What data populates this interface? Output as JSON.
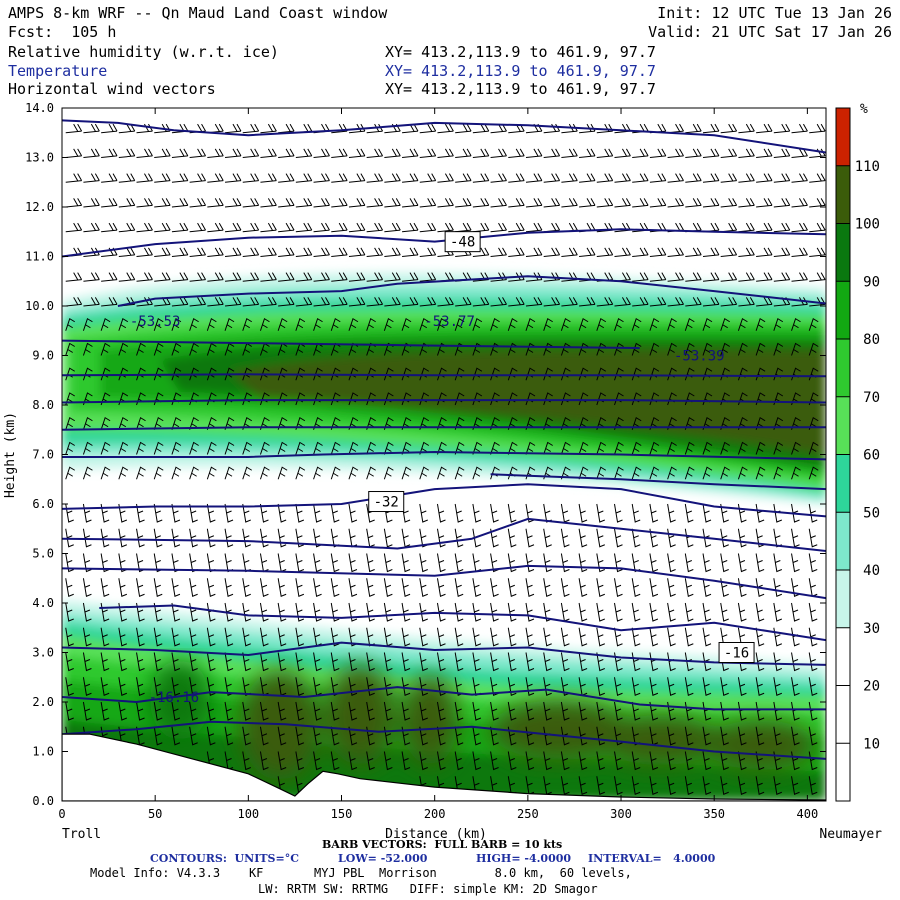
{
  "header": {
    "title": "AMPS 8-km WRF -- Qn Maud Land Coast window",
    "forecast": "Fcst:  105 h",
    "init": "Init: 12 UTC Tue 13 Jan 26",
    "valid": "Valid: 21 UTC Sat 17 Jan 26",
    "fields": [
      {
        "name": "Relative humidity (w.r.t. ice)",
        "xy": "XY= 413.2,113.9 to 461.9, 97.7"
      },
      {
        "name": "Temperature",
        "xy": "XY= 413.2,113.9 to 461.9, 97.7"
      },
      {
        "name": "Horizontal wind vectors",
        "xy": "XY= 413.2,113.9 to 461.9, 97.7"
      }
    ]
  },
  "endpoints": {
    "left": "Troll",
    "right": "Neumayer"
  },
  "footer": {
    "barb": "BARB VECTORS:  FULL BARB = 10 kts",
    "contours_label": "CONTOURS:  UNITS=°C",
    "low": "LOW= -52.000",
    "high": "HIGH= -4.0000",
    "interval": "INTERVAL=   4.0000",
    "model_info": "Model Info: V4.3.3    KF       MYJ PBL  Morrison        8.0 km,  60 levels,",
    "physics": "LW: RRTM SW: RRTMG   DIFF: simple KM: 2D Smagor"
  },
  "colors": {
    "contour": "#13137a",
    "rh_bins": [
      "#ffffff",
      "#ffffff",
      "#ffffff",
      "#c8f5ea",
      "#7ee8cc",
      "#2ed69a",
      "#58e058",
      "#2fc92f",
      "#12a812",
      "#0a780f",
      "#3b5c0a",
      "#cc2200"
    ]
  },
  "chart_data": {
    "type": "cross-section",
    "xlabel": "Distance (km)",
    "ylabel": "Height (km)",
    "xlim": [
      0,
      410
    ],
    "ylim": [
      0,
      14
    ],
    "x_ticks": [
      0,
      50,
      100,
      150,
      200,
      250,
      300,
      350,
      400
    ],
    "y_ticks": [
      "0.0",
      "1.0",
      "2.0",
      "3.0",
      "4.0",
      "5.0",
      "6.0",
      "7.0",
      "8.0",
      "9.0",
      "10.0",
      "11.0",
      "12.0",
      "13.0",
      "14.0"
    ],
    "colorbar": {
      "unit": "%",
      "ticks": [
        10,
        20,
        30,
        40,
        50,
        60,
        70,
        80,
        90,
        100,
        110
      ]
    },
    "terrain": [
      [
        0,
        1.35
      ],
      [
        15,
        1.35
      ],
      [
        40,
        1.15
      ],
      [
        70,
        0.85
      ],
      [
        100,
        0.55
      ],
      [
        115,
        0.28
      ],
      [
        125,
        0.1
      ],
      [
        132,
        0.35
      ],
      [
        140,
        0.6
      ],
      [
        148,
        0.55
      ],
      [
        160,
        0.45
      ],
      [
        200,
        0.28
      ],
      [
        250,
        0.15
      ],
      [
        300,
        0.08
      ],
      [
        350,
        0.04
      ],
      [
        410,
        0.02
      ]
    ],
    "contour_labels": [
      {
        "text": "-48",
        "x": 215,
        "y": 11.3,
        "boxed": true
      },
      {
        "text": "-53.53",
        "x": 50,
        "y": 9.7,
        "boxed": false
      },
      {
        "text": "-53.77",
        "x": 208,
        "y": 9.7,
        "boxed": false
      },
      {
        "text": "-53.39",
        "x": 342,
        "y": 9.0,
        "boxed": false
      },
      {
        "text": "-32",
        "x": 174,
        "y": 6.05,
        "boxed": true
      },
      {
        "text": "-16",
        "x": 362,
        "y": 3.0,
        "boxed": true
      },
      {
        "text": "-16.16",
        "x": 60,
        "y": 2.1,
        "boxed": false
      }
    ],
    "isotherms": [
      [
        [
          0,
          13.75
        ],
        [
          30,
          13.7
        ],
        [
          60,
          13.55
        ],
        [
          100,
          13.45
        ],
        [
          150,
          13.55
        ],
        [
          200,
          13.7
        ],
        [
          250,
          13.65
        ],
        [
          300,
          13.55
        ],
        [
          350,
          13.45
        ],
        [
          410,
          13.1
        ]
      ],
      [
        [
          0,
          11.0
        ],
        [
          50,
          11.25
        ],
        [
          100,
          11.38
        ],
        [
          150,
          11.42
        ],
        [
          200,
          11.3
        ],
        [
          250,
          11.48
        ],
        [
          300,
          11.55
        ],
        [
          350,
          11.5
        ],
        [
          410,
          11.45
        ]
      ],
      [
        [
          30,
          10.0
        ],
        [
          50,
          10.15
        ],
        [
          100,
          10.25
        ],
        [
          150,
          10.3
        ],
        [
          180,
          10.45
        ],
        [
          250,
          10.6
        ],
        [
          300,
          10.5
        ],
        [
          350,
          10.3
        ],
        [
          410,
          10.05
        ]
      ],
      [
        [
          0,
          9.3
        ],
        [
          100,
          9.25
        ],
        [
          200,
          9.2
        ],
        [
          310,
          9.15
        ]
      ],
      [
        [
          0,
          8.6
        ],
        [
          100,
          8.62
        ],
        [
          200,
          8.6
        ],
        [
          300,
          8.6
        ],
        [
          410,
          8.58
        ]
      ],
      [
        [
          0,
          8.05
        ],
        [
          100,
          8.1
        ],
        [
          200,
          8.1
        ],
        [
          300,
          8.1
        ],
        [
          410,
          8.05
        ]
      ],
      [
        [
          0,
          7.5
        ],
        [
          100,
          7.55
        ],
        [
          200,
          7.55
        ],
        [
          300,
          7.55
        ],
        [
          410,
          7.55
        ]
      ],
      [
        [
          0,
          6.95
        ],
        [
          100,
          6.95
        ],
        [
          140,
          7.0
        ],
        [
          200,
          7.05
        ],
        [
          300,
          7.0
        ],
        [
          410,
          6.9
        ]
      ],
      [
        [
          230,
          6.6
        ],
        [
          300,
          6.5
        ],
        [
          350,
          6.4
        ],
        [
          410,
          6.3
        ]
      ],
      [
        [
          0,
          5.9
        ],
        [
          50,
          5.95
        ],
        [
          100,
          5.95
        ],
        [
          150,
          6.0
        ],
        [
          200,
          6.3
        ],
        [
          250,
          6.4
        ],
        [
          300,
          6.3
        ],
        [
          350,
          5.95
        ],
        [
          410,
          5.75
        ]
      ],
      [
        [
          0,
          5.3
        ],
        [
          100,
          5.25
        ],
        [
          180,
          5.1
        ],
        [
          220,
          5.3
        ],
        [
          250,
          5.7
        ],
        [
          300,
          5.5
        ],
        [
          350,
          5.3
        ],
        [
          410,
          5.05
        ]
      ],
      [
        [
          0,
          4.7
        ],
        [
          100,
          4.65
        ],
        [
          200,
          4.55
        ],
        [
          250,
          4.75
        ],
        [
          300,
          4.7
        ],
        [
          350,
          4.45
        ],
        [
          410,
          4.1
        ]
      ],
      [
        [
          20,
          3.9
        ],
        [
          60,
          3.95
        ],
        [
          100,
          3.75
        ],
        [
          150,
          3.7
        ],
        [
          200,
          3.8
        ],
        [
          250,
          3.75
        ],
        [
          300,
          3.45
        ],
        [
          350,
          3.6
        ],
        [
          410,
          3.25
        ]
      ],
      [
        [
          0,
          3.1
        ],
        [
          50,
          3.05
        ],
        [
          100,
          2.95
        ],
        [
          150,
          3.2
        ],
        [
          200,
          3.05
        ],
        [
          250,
          3.1
        ],
        [
          300,
          2.9
        ],
        [
          350,
          2.8
        ],
        [
          410,
          2.75
        ]
      ],
      [
        [
          0,
          2.1
        ],
        [
          40,
          2.0
        ],
        [
          80,
          2.2
        ],
        [
          130,
          2.1
        ],
        [
          180,
          2.3
        ],
        [
          220,
          2.15
        ],
        [
          260,
          2.25
        ],
        [
          310,
          1.95
        ],
        [
          350,
          1.85
        ],
        [
          410,
          1.85
        ]
      ],
      [
        [
          0,
          1.35
        ],
        [
          40,
          1.45
        ],
        [
          80,
          1.6
        ],
        [
          120,
          1.55
        ],
        [
          170,
          1.4
        ],
        [
          220,
          1.5
        ],
        [
          260,
          1.35
        ],
        [
          300,
          1.2
        ],
        [
          350,
          1.0
        ],
        [
          410,
          0.85
        ]
      ]
    ]
  }
}
